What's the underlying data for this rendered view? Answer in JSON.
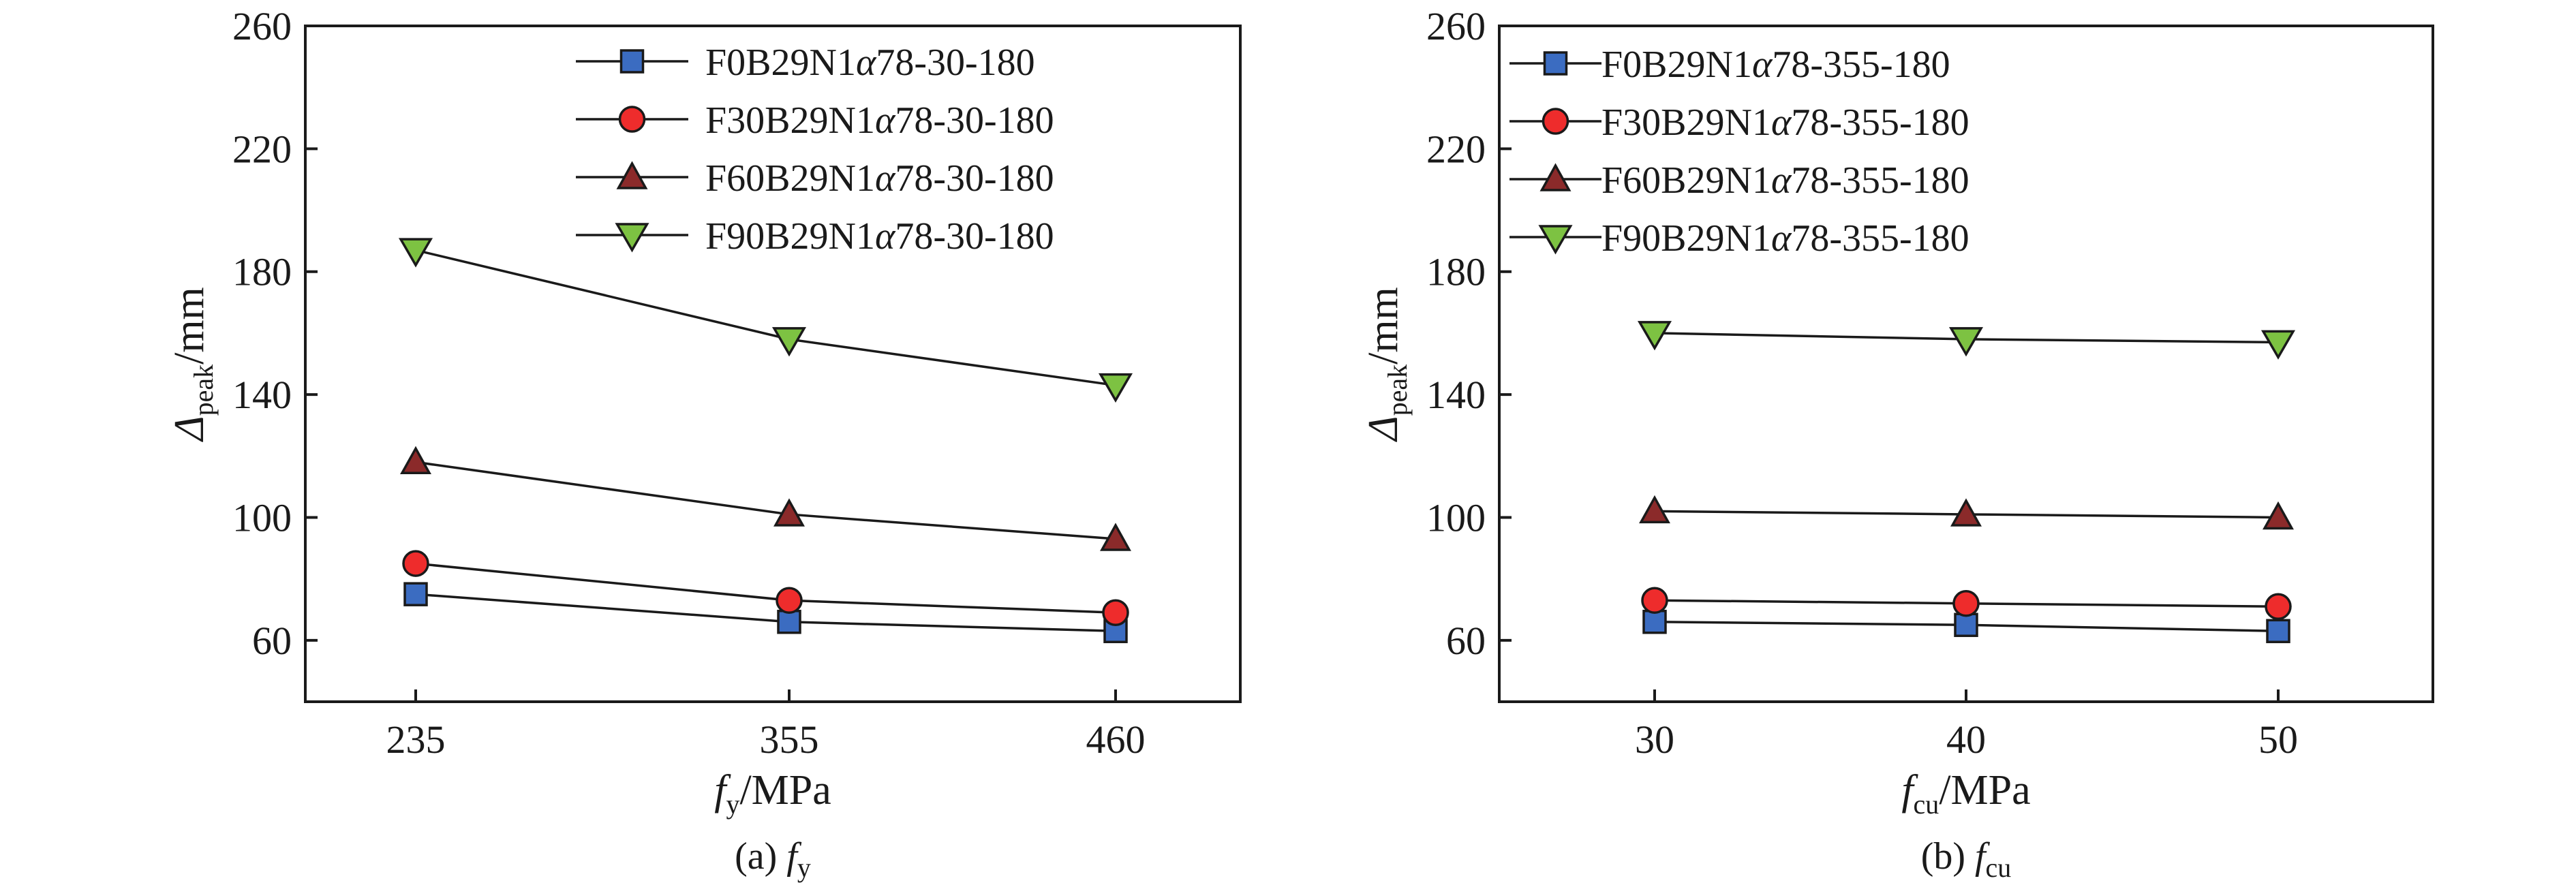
{
  "chart_data": [
    {
      "type": "line",
      "caption_prefix": "(a) ",
      "caption_symbol": "f",
      "caption_sub": "y",
      "xlabel_symbol": "f",
      "xlabel_sub": "y",
      "xlabel_unit": "/MPa",
      "ylabel_symbol": "Δ",
      "ylabel_sub": "peak",
      "ylabel_unit": "/mm",
      "categories": [
        "235",
        "355",
        "460"
      ],
      "ylim": [
        40,
        260
      ],
      "yticks": [
        60,
        100,
        140,
        180,
        220,
        260
      ],
      "grid": false,
      "legend_placement": "top-right",
      "series": [
        {
          "name_parts": [
            "F0B29N1",
            "α",
            "78-30-180"
          ],
          "marker": "square",
          "color": "#3b6cc1",
          "values": [
            75,
            66,
            63
          ]
        },
        {
          "name_parts": [
            "F30B29N1",
            "α",
            "78-30-180"
          ],
          "marker": "circle",
          "color": "#ee2c2c",
          "values": [
            85,
            73,
            69
          ]
        },
        {
          "name_parts": [
            "F60B29N1",
            "α",
            "78-30-180"
          ],
          "marker": "triangle-up",
          "color": "#8b2a2a",
          "values": [
            118,
            101,
            93
          ]
        },
        {
          "name_parts": [
            "F90B29N1",
            "α",
            "78-30-180"
          ],
          "marker": "triangle-down",
          "color": "#7dc242",
          "values": [
            187,
            158,
            143
          ]
        }
      ]
    },
    {
      "type": "line",
      "caption_prefix": "(b) ",
      "caption_symbol": "f",
      "caption_sub": "cu",
      "xlabel_symbol": "f",
      "xlabel_sub": "cu",
      "xlabel_unit": "/MPa",
      "ylabel_symbol": "Δ",
      "ylabel_sub": "peak",
      "ylabel_unit": "/mm",
      "categories": [
        "30",
        "40",
        "50"
      ],
      "ylim": [
        40,
        260
      ],
      "yticks": [
        60,
        100,
        140,
        180,
        220,
        260
      ],
      "grid": false,
      "legend_placement": "top-left",
      "series": [
        {
          "name_parts": [
            "F0B29N1",
            "α",
            "78-355-180"
          ],
          "marker": "square",
          "color": "#3b6cc1",
          "values": [
            66,
            65,
            63
          ]
        },
        {
          "name_parts": [
            "F30B29N1",
            "α",
            "78-355-180"
          ],
          "marker": "circle",
          "color": "#ee2c2c",
          "values": [
            73,
            72,
            71
          ]
        },
        {
          "name_parts": [
            "F60B29N1",
            "α",
            "78-355-180"
          ],
          "marker": "triangle-up",
          "color": "#8b2a2a",
          "values": [
            102,
            101,
            100
          ]
        },
        {
          "name_parts": [
            "F90B29N1",
            "α",
            "78-355-180"
          ],
          "marker": "triangle-down",
          "color": "#7dc242",
          "values": [
            160,
            158,
            157
          ]
        }
      ]
    }
  ]
}
